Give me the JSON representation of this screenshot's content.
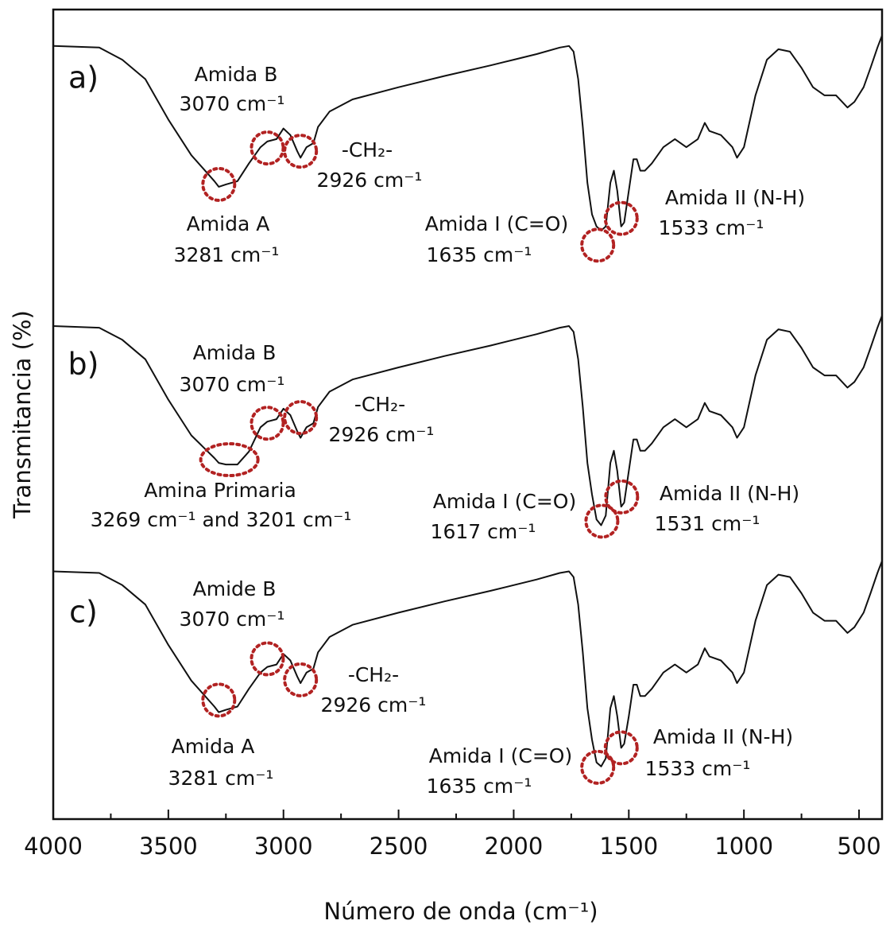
{
  "chart_data": {
    "type": "line",
    "xlabel": "Número de onda  (cm⁻¹)",
    "ylabel": "Transmitancia  (%)",
    "xlim": [
      4000,
      400
    ],
    "ylim": [
      0,
      100
    ],
    "xticks": [
      4000,
      3500,
      3000,
      2500,
      2000,
      1500,
      1000,
      500
    ],
    "xminorticks": [
      3750,
      3250,
      2750,
      2250,
      1750,
      1250,
      750
    ],
    "x": [
      4000,
      3800,
      3700,
      3600,
      3500,
      3400,
      3300,
      3281,
      3250,
      3200,
      3150,
      3100,
      3070,
      3030,
      3000,
      2970,
      2940,
      2926,
      2900,
      2870,
      2850,
      2800,
      2700,
      2500,
      2300,
      2100,
      2000,
      1900,
      1800,
      1760,
      1740,
      1720,
      1700,
      1680,
      1660,
      1640,
      1620,
      1600,
      1580,
      1565,
      1550,
      1533,
      1520,
      1500,
      1480,
      1465,
      1450,
      1430,
      1400,
      1350,
      1300,
      1250,
      1200,
      1170,
      1150,
      1100,
      1050,
      1030,
      1000,
      950,
      900,
      850,
      800,
      750,
      700,
      650,
      600,
      550,
      520,
      480,
      450,
      420,
      400
    ],
    "series": [
      {
        "name": "a)",
        "color": "#111111",
        "values": [
          95.5,
          95.3,
          93.8,
          91.4,
          86.4,
          82.0,
          78.8,
          78.1,
          78.4,
          78.8,
          81.0,
          83.0,
          83.7,
          84.0,
          85.3,
          84.5,
          82.5,
          81.7,
          83.0,
          83.5,
          85.5,
          87.4,
          88.9,
          90.4,
          91.8,
          93.1,
          93.8,
          94.5,
          95.3,
          95.5,
          94.8,
          91.4,
          85.5,
          78.6,
          74.7,
          73.2,
          72.7,
          73.2,
          78.6,
          80.1,
          77.6,
          73.2,
          73.7,
          77.6,
          81.5,
          81.5,
          80.1,
          80.1,
          81.0,
          83.0,
          84.0,
          83.0,
          84.0,
          86.0,
          85.0,
          84.5,
          83.0,
          81.7,
          83.0,
          89.4,
          93.8,
          95.1,
          94.8,
          92.8,
          90.4,
          89.4,
          89.4,
          87.9,
          88.6,
          90.4,
          92.8,
          95.3,
          96.8
        ],
        "circles": [
          {
            "x": 3281,
            "y": 78.4
          },
          {
            "x": 3070,
            "y": 82.9
          },
          {
            "x": 2926,
            "y": 82.5
          },
          {
            "x": 1635,
            "y": 70.9
          },
          {
            "x": 1533,
            "y": 74.2
          }
        ]
      },
      {
        "name": "b)",
        "color": "#111111",
        "values": [
          60.9,
          60.7,
          59.2,
          56.8,
          51.8,
          47.4,
          44.6,
          44.0,
          43.8,
          43.8,
          45.4,
          48.4,
          49.1,
          49.4,
          50.7,
          49.9,
          47.9,
          47.1,
          48.4,
          48.9,
          50.9,
          52.8,
          54.3,
          55.8,
          57.2,
          58.5,
          59.2,
          59.9,
          60.7,
          60.9,
          60.2,
          56.8,
          50.9,
          44.0,
          40.1,
          37.0,
          36.3,
          37.5,
          44.0,
          45.5,
          43.0,
          38.6,
          39.1,
          43.0,
          46.9,
          46.9,
          45.5,
          45.5,
          46.4,
          48.4,
          49.4,
          48.4,
          49.4,
          51.4,
          50.4,
          49.9,
          48.4,
          47.1,
          48.4,
          54.8,
          59.2,
          60.5,
          60.2,
          58.2,
          55.8,
          54.8,
          54.8,
          53.3,
          54.0,
          55.8,
          58.2,
          60.7,
          62.2
        ],
        "circles": [
          {
            "x": 3235,
            "y": 44.4
          },
          {
            "x": 3070,
            "y": 48.9
          },
          {
            "x": 2926,
            "y": 49.6
          },
          {
            "x": 1617,
            "y": 36.8
          },
          {
            "x": 1531,
            "y": 39.8
          }
        ]
      },
      {
        "name": "c)",
        "color": "#111111",
        "values": [
          30.6,
          30.4,
          28.9,
          26.5,
          21.5,
          17.1,
          13.9,
          13.2,
          13.5,
          13.9,
          16.1,
          18.1,
          18.8,
          19.1,
          20.4,
          19.6,
          17.6,
          16.8,
          18.1,
          18.6,
          20.6,
          22.5,
          24.0,
          25.5,
          26.9,
          28.2,
          28.9,
          29.6,
          30.4,
          30.6,
          29.9,
          26.5,
          20.6,
          13.7,
          9.8,
          7.0,
          6.5,
          7.5,
          13.7,
          15.2,
          12.7,
          8.8,
          9.3,
          12.7,
          16.6,
          16.6,
          15.2,
          15.2,
          16.1,
          18.1,
          19.1,
          18.1,
          19.1,
          21.1,
          20.1,
          19.6,
          18.1,
          16.8,
          18.1,
          24.5,
          28.9,
          30.2,
          29.9,
          27.9,
          25.5,
          24.5,
          24.5,
          23.0,
          23.7,
          25.5,
          27.9,
          30.4,
          31.9
        ],
        "circles": [
          {
            "x": 3281,
            "y": 14.7
          },
          {
            "x": 3070,
            "y": 19.8
          },
          {
            "x": 2926,
            "y": 17.2
          },
          {
            "x": 1635,
            "y": 6.4
          },
          {
            "x": 1533,
            "y": 8.8
          }
        ]
      }
    ],
    "circle_color": "#b22222",
    "annotations": [
      "Amida B",
      "3070 cm⁻¹",
      "-CH₂-",
      "2926 cm⁻¹",
      "Amida A",
      "3281 cm⁻¹",
      "Amida I (C=O)",
      "1635 cm⁻¹",
      "Amida II (N-H)",
      "1533 cm⁻¹",
      "Amida B",
      "3070 cm⁻¹",
      "-CH₂-",
      "2926 cm⁻¹",
      "Amina Primaria",
      "3269 cm⁻¹ and 3201 cm⁻¹",
      "Amida I (C=O)",
      "1617 cm⁻¹",
      "Amida II (N-H)",
      "1531 cm⁻¹",
      "Amide B",
      "3070 cm⁻¹",
      "-CH₂-",
      "2926 cm⁻¹",
      "Amida A",
      "3281 cm⁻¹",
      "Amida I (C=O)",
      "1635 cm⁻¹",
      "Amida II (N-H)",
      "1533 cm⁻¹"
    ]
  }
}
